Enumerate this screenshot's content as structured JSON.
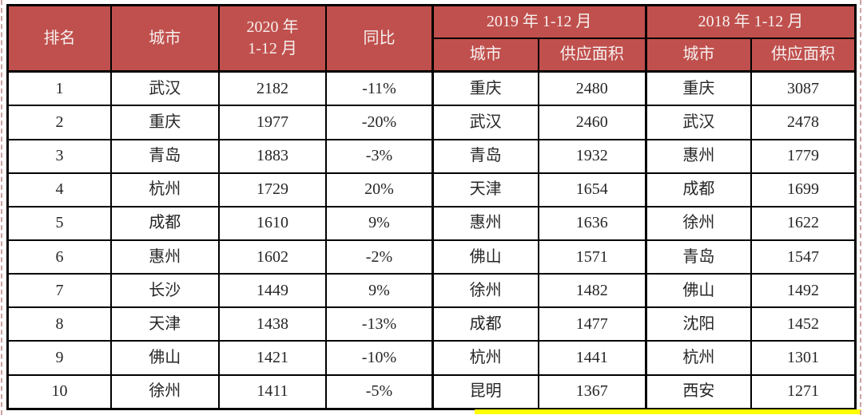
{
  "colors": {
    "header_bg": "#C0504D",
    "header_text": "#F6F0EF",
    "grid_border": "#000000",
    "body_text": "#262626",
    "highlight_strip": "#FFFF00",
    "page_break_dash": "#CF9F9D"
  },
  "chart_data": {
    "type": "table",
    "header": {
      "rank": "排名",
      "city": "城市",
      "y2020_line1": "2020 年",
      "y2020_line2": "1-12 月",
      "yoy": "同比",
      "y2019": "2019 年 1-12 月",
      "y2018": "2018 年 1-12 月",
      "sub_city": "城市",
      "sub_supply": "供应面积"
    },
    "columns": [
      "排名",
      "城市",
      "2020年1-12月",
      "同比",
      "2019年城市",
      "2019年供应面积",
      "2018年城市",
      "2018年供应面积"
    ],
    "rows": [
      [
        "1",
        "武汉",
        "2182",
        "-11%",
        "重庆",
        "2480",
        "重庆",
        "3087"
      ],
      [
        "2",
        "重庆",
        "1977",
        "-20%",
        "武汉",
        "2460",
        "武汉",
        "2478"
      ],
      [
        "3",
        "青岛",
        "1883",
        "-3%",
        "青岛",
        "1932",
        "惠州",
        "1779"
      ],
      [
        "4",
        "杭州",
        "1729",
        "20%",
        "天津",
        "1654",
        "成都",
        "1699"
      ],
      [
        "5",
        "成都",
        "1610",
        "9%",
        "惠州",
        "1636",
        "徐州",
        "1622"
      ],
      [
        "6",
        "惠州",
        "1602",
        "-2%",
        "佛山",
        "1571",
        "青岛",
        "1547"
      ],
      [
        "7",
        "长沙",
        "1449",
        "9%",
        "徐州",
        "1482",
        "佛山",
        "1492"
      ],
      [
        "8",
        "天津",
        "1438",
        "-13%",
        "成都",
        "1477",
        "沈阳",
        "1452"
      ],
      [
        "9",
        "佛山",
        "1421",
        "-10%",
        "杭州",
        "1441",
        "杭州",
        "1301"
      ],
      [
        "10",
        "徐州",
        "1411",
        "-5%",
        "昆明",
        "1367",
        "西安",
        "1271"
      ]
    ]
  }
}
